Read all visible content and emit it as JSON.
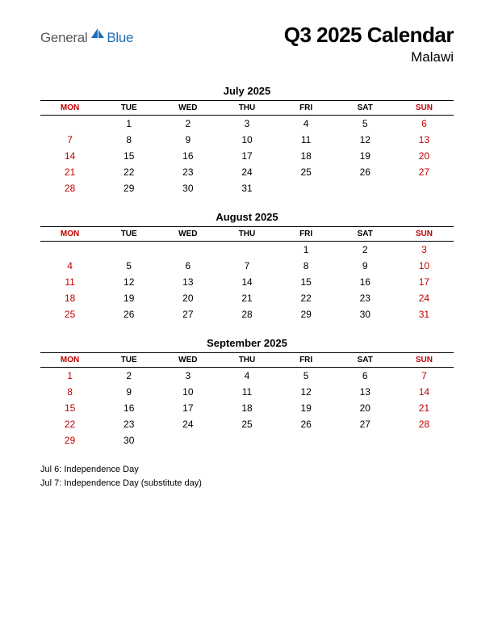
{
  "logo": {
    "general": "General",
    "blue": "Blue"
  },
  "title": "Q3 2025 Calendar",
  "subtitle": "Malawi",
  "day_headers": [
    "MON",
    "TUE",
    "WED",
    "THU",
    "FRI",
    "SAT",
    "SUN"
  ],
  "red_header_cols": [
    0,
    6
  ],
  "colors": {
    "red": "#c00000",
    "black": "#000000",
    "logo_gray": "#5a5a5a",
    "logo_blue": "#1e6fb8",
    "background": "#ffffff"
  },
  "months": [
    {
      "title": "July 2025",
      "weeks": [
        [
          "",
          "1",
          "2",
          "3",
          "4",
          "5",
          "6"
        ],
        [
          "7",
          "8",
          "9",
          "10",
          "11",
          "12",
          "13"
        ],
        [
          "14",
          "15",
          "16",
          "17",
          "18",
          "19",
          "20"
        ],
        [
          "21",
          "22",
          "23",
          "24",
          "25",
          "26",
          "27"
        ],
        [
          "28",
          "29",
          "30",
          "31",
          "",
          "",
          ""
        ]
      ],
      "red_cells": [
        [
          0,
          6
        ],
        [
          1,
          0
        ],
        [
          1,
          6
        ],
        [
          2,
          0
        ],
        [
          2,
          6
        ],
        [
          3,
          0
        ],
        [
          3,
          6
        ],
        [
          4,
          0
        ]
      ]
    },
    {
      "title": "August 2025",
      "weeks": [
        [
          "",
          "",
          "",
          "",
          "1",
          "2",
          "3"
        ],
        [
          "4",
          "5",
          "6",
          "7",
          "8",
          "9",
          "10"
        ],
        [
          "11",
          "12",
          "13",
          "14",
          "15",
          "16",
          "17"
        ],
        [
          "18",
          "19",
          "20",
          "21",
          "22",
          "23",
          "24"
        ],
        [
          "25",
          "26",
          "27",
          "28",
          "29",
          "30",
          "31"
        ]
      ],
      "red_cells": [
        [
          0,
          6
        ],
        [
          1,
          0
        ],
        [
          1,
          6
        ],
        [
          2,
          0
        ],
        [
          2,
          6
        ],
        [
          3,
          0
        ],
        [
          3,
          6
        ],
        [
          4,
          0
        ],
        [
          4,
          6
        ]
      ]
    },
    {
      "title": "September 2025",
      "weeks": [
        [
          "1",
          "2",
          "3",
          "4",
          "5",
          "6",
          "7"
        ],
        [
          "8",
          "9",
          "10",
          "11",
          "12",
          "13",
          "14"
        ],
        [
          "15",
          "16",
          "17",
          "18",
          "19",
          "20",
          "21"
        ],
        [
          "22",
          "23",
          "24",
          "25",
          "26",
          "27",
          "28"
        ],
        [
          "29",
          "30",
          "",
          "",
          "",
          "",
          ""
        ]
      ],
      "red_cells": [
        [
          0,
          0
        ],
        [
          0,
          6
        ],
        [
          1,
          0
        ],
        [
          1,
          6
        ],
        [
          2,
          0
        ],
        [
          2,
          6
        ],
        [
          3,
          0
        ],
        [
          3,
          6
        ],
        [
          4,
          0
        ]
      ]
    }
  ],
  "holidays": [
    "Jul 6: Independence Day",
    "Jul 7: Independence Day (substitute day)"
  ]
}
